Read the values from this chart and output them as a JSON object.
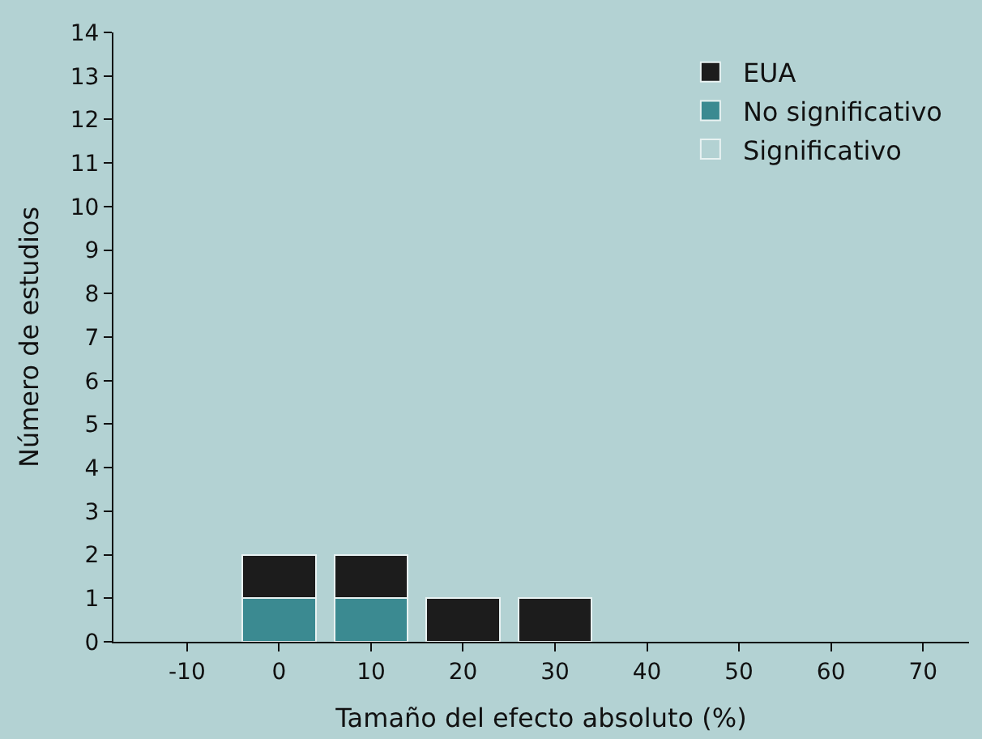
{
  "chart_data": {
    "type": "bar",
    "stacked": true,
    "xlabel": "Tamaño del efecto absoluto (%)",
    "ylabel": "Número de estudios",
    "x": [
      0,
      10,
      20,
      30
    ],
    "series": [
      {
        "name": "Significativo",
        "color": "#b3d2d3",
        "values": [
          0,
          0,
          0,
          0
        ]
      },
      {
        "name": "No significativo",
        "color": "#3b8a91",
        "values": [
          1,
          1,
          0,
          0
        ]
      },
      {
        "name": "EUA",
        "color": "#1c1c1c",
        "values": [
          1,
          1,
          1,
          1
        ]
      }
    ],
    "xlim": [
      -18,
      75
    ],
    "xticks": [
      -10,
      0,
      10,
      20,
      30,
      40,
      50,
      60,
      70
    ],
    "ylim": [
      0,
      14
    ],
    "yticks": [
      0,
      1,
      2,
      3,
      4,
      5,
      6,
      7,
      8,
      9,
      10,
      11,
      12,
      13,
      14
    ],
    "grid": false,
    "legend": "top right"
  }
}
